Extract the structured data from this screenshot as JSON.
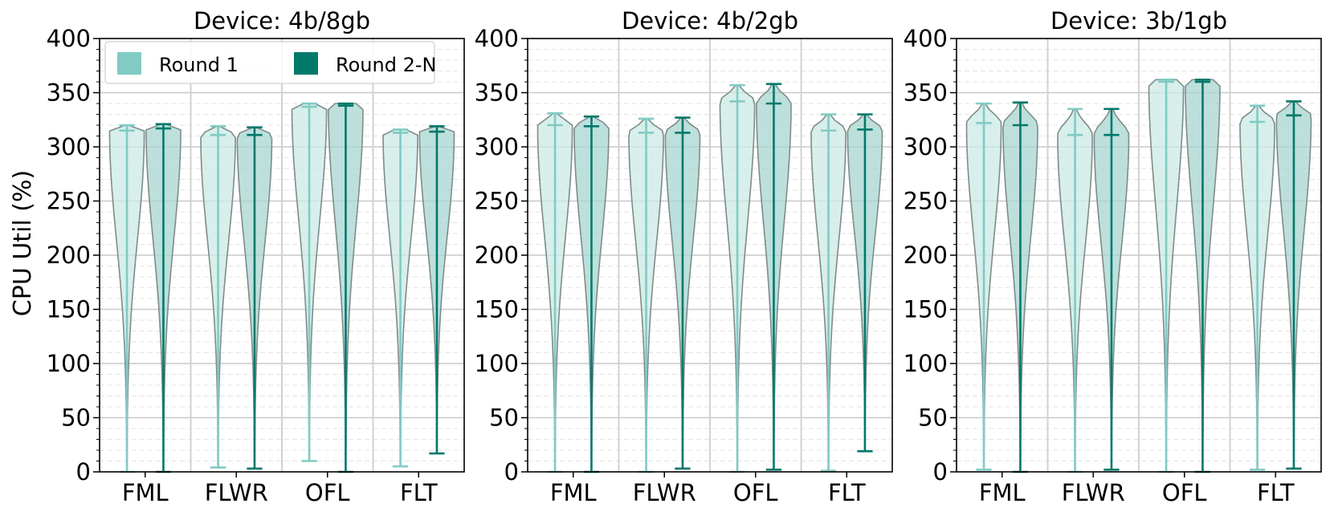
{
  "figure": {
    "ylabel": "CPU Util (%)"
  },
  "legend": {
    "placement": "upper-left of first panel",
    "items": [
      {
        "label": "Round 1",
        "color": "#80cbc4"
      },
      {
        "label": "Round 2-N",
        "color": "#00796b"
      }
    ]
  },
  "colors": {
    "round1_line": "#80cbc4",
    "round1_fill": "#cbe9e5",
    "round2_line": "#00796b",
    "round2_fill": "#a7d6d0",
    "violin_edge": "#7f8c8a"
  },
  "chart_data": [
    {
      "type": "violin",
      "title": "Device: 4b/8gb",
      "ylabel": "CPU Util (%)",
      "ylim": [
        0,
        400
      ],
      "yticks": [
        "0",
        "50",
        "100",
        "150",
        "200",
        "250",
        "300",
        "350",
        "400"
      ],
      "grid": true,
      "categories": [
        "FML",
        "FLWR",
        "OFL",
        "FLT"
      ],
      "series": [
        {
          "name": "Round 1",
          "min": [
            0,
            4,
            10,
            5
          ],
          "mean": [
            315,
            311,
            337,
            313
          ],
          "max": [
            320,
            319,
            340,
            316
          ]
        },
        {
          "name": "Round 2-N",
          "min": [
            0,
            3,
            0,
            17
          ],
          "mean": [
            317,
            311,
            338,
            314
          ],
          "max": [
            321,
            318,
            340,
            319
          ]
        }
      ]
    },
    {
      "type": "violin",
      "title": "Device: 4b/2gb",
      "ylim": [
        0,
        400
      ],
      "yticks": [
        "0",
        "50",
        "100",
        "150",
        "200",
        "250",
        "300",
        "350",
        "400"
      ],
      "grid": true,
      "categories": [
        "FML",
        "FLWR",
        "OFL",
        "FLT"
      ],
      "series": [
        {
          "name": "Round 1",
          "min": [
            0,
            0,
            0,
            1
          ],
          "mean": [
            320,
            313,
            342,
            315
          ],
          "max": [
            331,
            326,
            357,
            330
          ]
        },
        {
          "name": "Round 2-N",
          "min": [
            0,
            3,
            2,
            19
          ],
          "mean": [
            319,
            313,
            340,
            316
          ],
          "max": [
            328,
            327,
            358,
            330
          ]
        }
      ]
    },
    {
      "type": "violin",
      "title": "Device: 3b/1gb",
      "ylim": [
        0,
        400
      ],
      "yticks": [
        "0",
        "50",
        "100",
        "150",
        "200",
        "250",
        "300",
        "350",
        "400"
      ],
      "grid": true,
      "categories": [
        "FML",
        "FLWR",
        "OFL",
        "FLT"
      ],
      "series": [
        {
          "name": "Round 1",
          "min": [
            2,
            0,
            0,
            2
          ],
          "mean": [
            322,
            311,
            360,
            323
          ],
          "max": [
            340,
            335,
            362,
            338
          ]
        },
        {
          "name": "Round 2-N",
          "min": [
            0,
            2,
            0,
            3
          ],
          "mean": [
            320,
            311,
            360,
            329
          ],
          "max": [
            341,
            335,
            362,
            342
          ]
        }
      ]
    }
  ]
}
